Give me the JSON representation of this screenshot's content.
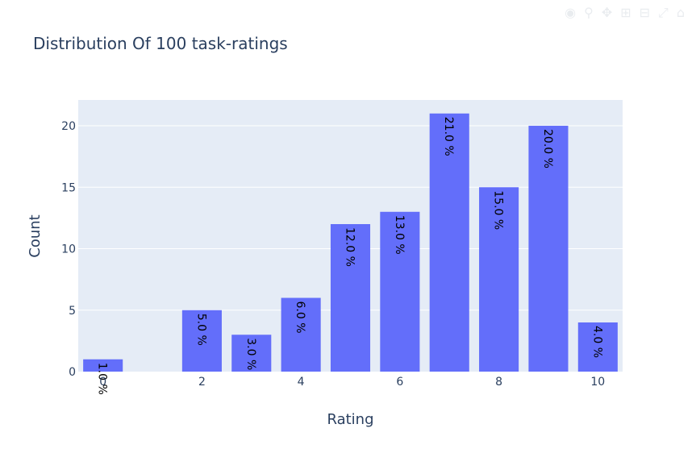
{
  "modebar": {
    "icons": [
      "camera-icon",
      "zoom-icon",
      "pan-icon",
      "box-select-icon",
      "lasso-icon",
      "zoom-in-icon",
      "zoom-out-icon",
      "autoscale-icon",
      "reset-axes-icon",
      "plotly-logo-icon"
    ]
  },
  "chart_data": {
    "type": "bar",
    "title": "Distribution Of 100 task-ratings",
    "xlabel": "Rating",
    "ylabel": "Count",
    "x": [
      0,
      2,
      3,
      4,
      5,
      6,
      7,
      8,
      9,
      10
    ],
    "values": [
      1,
      5,
      3,
      6,
      12,
      13,
      21,
      15,
      20,
      4
    ],
    "labels": [
      "1.0 %",
      "5.0 %",
      "3.0 %",
      "6.0 %",
      "12.0 %",
      "13.0 %",
      "21.0 %",
      "15.0 %",
      "20.0 %",
      "4.0 %"
    ],
    "xticks": [
      "0",
      "2",
      "4",
      "6",
      "8",
      "10"
    ],
    "xtick_values": [
      0,
      2,
      4,
      6,
      8,
      10
    ],
    "yticks": [
      "0",
      "5",
      "10",
      "15",
      "20"
    ],
    "ytick_values": [
      0,
      5,
      10,
      15,
      20
    ],
    "xlim": [
      -0.5,
      10.5
    ],
    "ylim": [
      0,
      22.1
    ],
    "grid": true,
    "colors": {
      "bar": "#636efa",
      "plot_bg": "#e5ecf6",
      "grid": "#ffffff",
      "text": "#2a3f5f"
    }
  }
}
